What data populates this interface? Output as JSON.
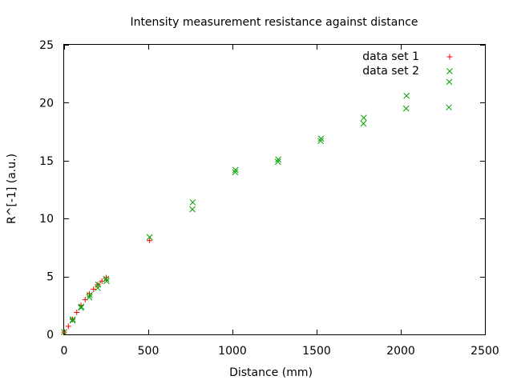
{
  "chart_data": {
    "type": "scatter",
    "title": "Intensity measurement resistance against distance",
    "xlabel": "Distance (mm)",
    "ylabel": "R^[-1] (a.u.)",
    "xlim": [
      0,
      2500
    ],
    "ylim": [
      0,
      25
    ],
    "xticks": [
      0,
      500,
      1000,
      1500,
      2000,
      2500
    ],
    "yticks": [
      0,
      5,
      10,
      15,
      20,
      25
    ],
    "xtick_labels": [
      "0",
      "500",
      "1000",
      "1500",
      "2000",
      "2500"
    ],
    "ytick_labels": [
      "0",
      "5",
      "10",
      "15",
      "20",
      "25"
    ],
    "grid": false,
    "legend_position": "top-right",
    "series": [
      {
        "name": "data set 1",
        "marker": "plus",
        "color": "#ff0000",
        "x": [
          0,
          25,
          50,
          75,
          100,
          125,
          150,
          175,
          200,
          225,
          250,
          508
        ],
        "y": [
          0.2,
          0.7,
          1.3,
          1.9,
          2.5,
          3.0,
          3.5,
          3.9,
          4.3,
          4.6,
          4.9,
          8.1
        ]
      },
      {
        "name": "data set 2",
        "marker": "cross",
        "color": "#00a000",
        "x": [
          0,
          50,
          52,
          100,
          102,
          150,
          152,
          200,
          202,
          250,
          252,
          508,
          762,
          764,
          1016,
          1018,
          1270,
          1272,
          1524,
          1526,
          1778,
          1780,
          2032,
          2034,
          2286,
          2288
        ],
        "y": [
          0.2,
          1.2,
          1.3,
          2.3,
          2.4,
          3.2,
          3.4,
          4.0,
          4.3,
          4.8,
          4.6,
          8.4,
          10.8,
          11.4,
          14.0,
          14.2,
          14.9,
          15.1,
          16.7,
          16.9,
          18.2,
          18.7,
          19.5,
          20.6,
          19.6,
          21.8
        ]
      }
    ]
  }
}
